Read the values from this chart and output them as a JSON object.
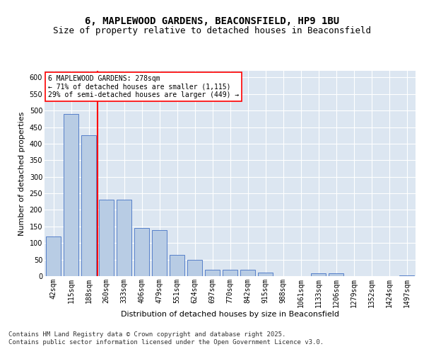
{
  "title_line1": "6, MAPLEWOOD GARDENS, BEACONSFIELD, HP9 1BU",
  "title_line2": "Size of property relative to detached houses in Beaconsfield",
  "xlabel": "Distribution of detached houses by size in Beaconsfield",
  "ylabel": "Number of detached properties",
  "categories": [
    "42sqm",
    "115sqm",
    "188sqm",
    "260sqm",
    "333sqm",
    "406sqm",
    "479sqm",
    "551sqm",
    "624sqm",
    "697sqm",
    "770sqm",
    "842sqm",
    "915sqm",
    "988sqm",
    "1061sqm",
    "1133sqm",
    "1206sqm",
    "1279sqm",
    "1352sqm",
    "1424sqm",
    "1497sqm"
  ],
  "values": [
    120,
    490,
    425,
    230,
    230,
    145,
    140,
    65,
    50,
    20,
    20,
    20,
    10,
    0,
    0,
    8,
    8,
    0,
    0,
    0,
    3
  ],
  "bar_color": "#b8cce4",
  "bar_edge_color": "#4472c4",
  "background_color": "#dce6f1",
  "grid_color": "#ffffff",
  "vline_x": 2.5,
  "vline_color": "red",
  "annotation_text": "6 MAPLEWOOD GARDENS: 278sqm\n← 71% of detached houses are smaller (1,115)\n29% of semi-detached houses are larger (449) →",
  "annotation_box_color": "white",
  "annotation_box_edge_color": "red",
  "ylim": [
    0,
    620
  ],
  "yticks": [
    0,
    50,
    100,
    150,
    200,
    250,
    300,
    350,
    400,
    450,
    500,
    550,
    600
  ],
  "footer_text": "Contains HM Land Registry data © Crown copyright and database right 2025.\nContains public sector information licensed under the Open Government Licence v3.0.",
  "title_fontsize": 10,
  "subtitle_fontsize": 9,
  "axis_label_fontsize": 8,
  "tick_fontsize": 7,
  "footer_fontsize": 6.5
}
